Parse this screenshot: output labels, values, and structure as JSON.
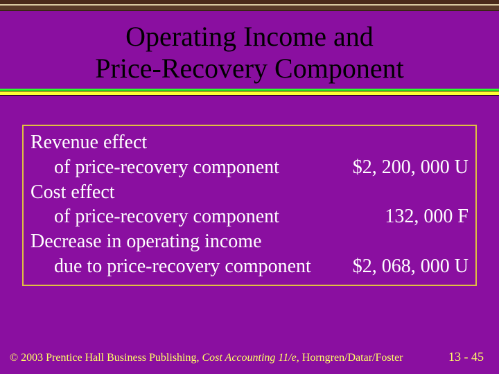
{
  "colors": {
    "background": "#8a0fa0",
    "box_border": "#e0c040",
    "title_text": "#000000",
    "body_text": "#ffffff",
    "footer_text": "#ffff66",
    "rule_green": "#2aff2a",
    "rule_yellow": "#ffff33"
  },
  "title": {
    "line1": "Operating Income and",
    "line2": "Price-Recovery Component",
    "fontsize": 40
  },
  "content": {
    "fontsize": 28,
    "rows": [
      {
        "label": "Revenue effect"
      },
      {
        "label": "of price-recovery component",
        "indent": true,
        "amount": "$2, 200, 000 U"
      },
      {
        "label": "Cost effect"
      },
      {
        "label": "of price-recovery component",
        "indent": true,
        "amount": "132, 000 F"
      },
      {
        "label": "Decrease in operating income"
      },
      {
        "label": "due to price-recovery component",
        "indent": true,
        "amount": "$2, 068, 000 U"
      }
    ]
  },
  "footer": {
    "copyright_prefix": "© 2003 Prentice Hall Business Publishing, ",
    "book_title": "Cost Accounting 11/e,",
    "authors": " Horngren/Datar/Foster",
    "page": "13 - 45",
    "fontsize": 16
  }
}
